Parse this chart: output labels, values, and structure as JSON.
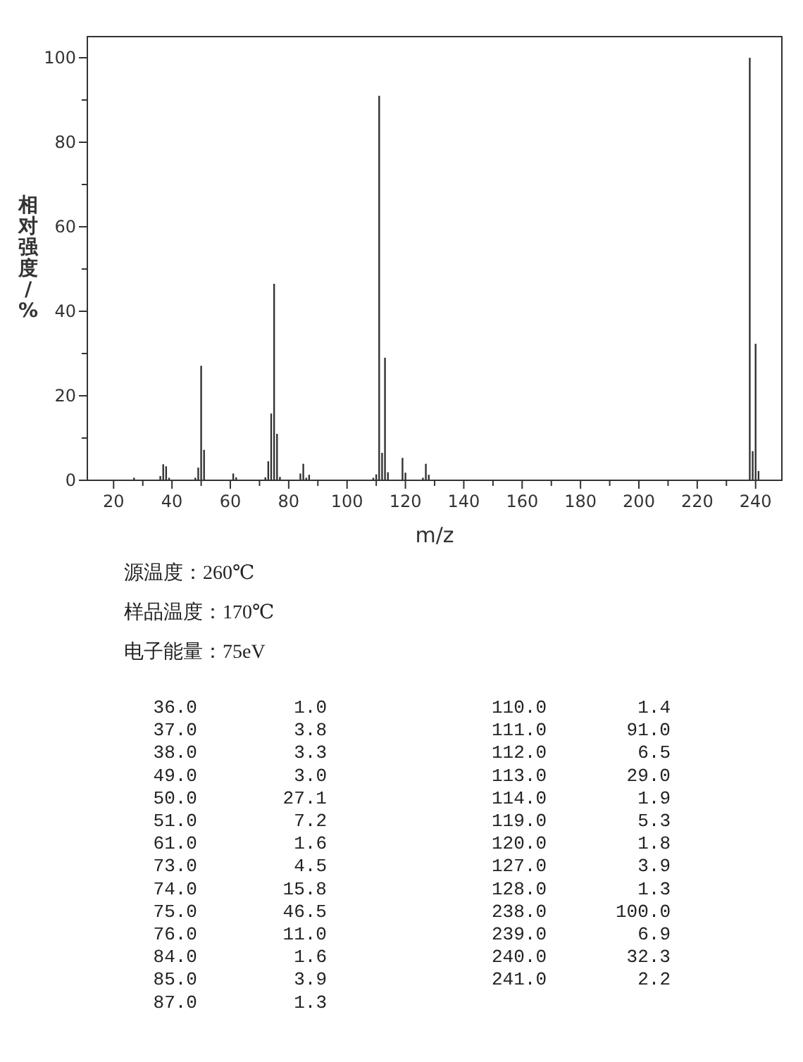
{
  "chart_data": {
    "type": "bar",
    "xlabel": "m/z",
    "ylabel": "相对强度/%",
    "annotations": [
      "源温度：260℃",
      "样品温度：170℃",
      "电子能量：75eV",
      "36.0",
      "1.0",
      "37.0",
      "3.8",
      "38.0",
      "3.3",
      "49.0",
      "3.0",
      "50.0",
      "27.1",
      "51.0",
      "7.2",
      "61.0",
      "1.6",
      "73.0",
      "4.5",
      "74.0",
      "15.8",
      "75.0",
      "46.5",
      "76.0",
      "11.0",
      "84.0",
      "1.6",
      "85.0",
      "3.9",
      "87.0",
      "1.3",
      "110.0",
      "1.4",
      "111.0",
      "91.0",
      "112.0",
      "6.5",
      "113.0",
      "29.0",
      "114.0",
      "1.9",
      "119.0",
      "5.3",
      "120.0",
      "1.8",
      "127.0",
      "3.9",
      "128.0",
      "1.3",
      "238.0",
      "100.0",
      "239.0",
      "6.9",
      "240.0",
      "32.3",
      "241.0",
      "2.2"
    ],
    "xlim": [
      11,
      249
    ],
    "ylim": [
      0,
      105
    ],
    "xticks": [
      20,
      {
        "value": 30,
        "label": null
      },
      40,
      {
        "value": 50,
        "label": null
      },
      60,
      {
        "value": 70,
        "label": null
      },
      80,
      {
        "value": 90,
        "label": null
      },
      100,
      {
        "value": 110,
        "label": null
      },
      120,
      {
        "value": 130,
        "label": null
      },
      140,
      {
        "value": 150,
        "label": null
      },
      160,
      {
        "value": 170,
        "label": null
      },
      180,
      {
        "value": 190,
        "label": null
      },
      200,
      {
        "value": 210,
        "label": null
      },
      220,
      {
        "value": 230,
        "label": null
      },
      240
    ],
    "yticks": [
      0,
      {
        "value": 10,
        "label": null
      },
      20,
      {
        "value": 30,
        "label": null
      },
      40,
      {
        "value": 50,
        "label": null
      },
      60,
      {
        "value": 70,
        "label": null
      },
      80,
      {
        "value": 90,
        "label": null
      },
      100
    ],
    "grid": false,
    "color": "#333333",
    "x": [
      27,
      36,
      37,
      38,
      39,
      48,
      49,
      50,
      51,
      61,
      62,
      72,
      73,
      74,
      75,
      76,
      77,
      84,
      85,
      86,
      87,
      109,
      110,
      111,
      112,
      113,
      114,
      119,
      120,
      126,
      127,
      128,
      238,
      239,
      240,
      241
    ],
    "values": [
      0.6,
      1.0,
      3.8,
      3.3,
      0.6,
      0.6,
      3.0,
      27.1,
      7.2,
      1.6,
      0.7,
      0.7,
      4.5,
      15.8,
      46.5,
      11.0,
      0.8,
      1.6,
      3.9,
      0.6,
      1.3,
      0.6,
      1.4,
      91.0,
      6.5,
      29.0,
      1.9,
      5.3,
      1.8,
      0.6,
      3.9,
      1.3,
      100.0,
      6.9,
      32.3,
      2.2
    ]
  }
}
